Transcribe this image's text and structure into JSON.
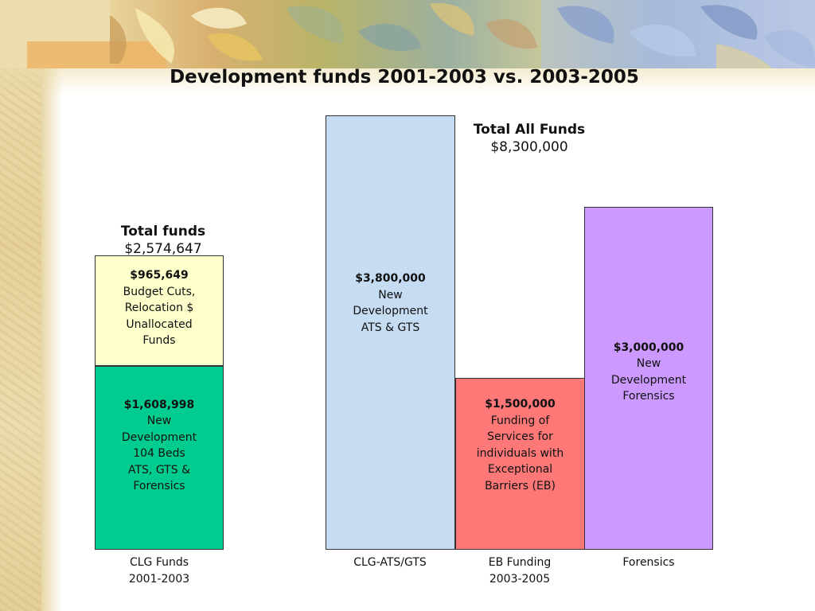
{
  "chart_data": {
    "type": "bar",
    "stacked": true,
    "title": "Development funds 2001-2003 vs. 2003-2005",
    "categories": [
      "CLG Funds\n2001-2003",
      "CLG-ATS/GTS",
      "EB Funding\n2003-2005",
      "Forensics"
    ],
    "segments": [
      {
        "category_index": 0,
        "value": 1608998,
        "value_label": "$1,608,998",
        "description": "New\nDevelopment\n104 Beds\nATS, GTS &\nForensics",
        "color": "#00cc8f"
      },
      {
        "category_index": 0,
        "value": 965649,
        "value_label": "$965,649",
        "description": "Budget Cuts,\nRelocation $\nUnallocated\nFunds",
        "color": "#ffffcc"
      },
      {
        "category_index": 1,
        "value": 3800000,
        "value_label": "$3,800,000",
        "description": "New\nDevelopment\nATS & GTS",
        "color": "#c5dcf2"
      },
      {
        "category_index": 2,
        "value": 1500000,
        "value_label": "$1,500,000",
        "description": "Funding of\nServices for\nindividuals with\nExceptional\nBarriers (EB)",
        "color": "#ff7878"
      },
      {
        "category_index": 3,
        "value": 3000000,
        "value_label": "$3,000,000",
        "description": "New\nDevelopment\nForensics",
        "color": "#cc99ff"
      }
    ],
    "totals": [
      {
        "label": "Total funds",
        "value": 2574647,
        "value_label": "$2,574,647"
      },
      {
        "label": "Total All Funds",
        "value": 8300000,
        "value_label": "$8,300,000"
      }
    ],
    "xlabel": "",
    "ylabel": "",
    "grid": false,
    "legend": "none"
  }
}
